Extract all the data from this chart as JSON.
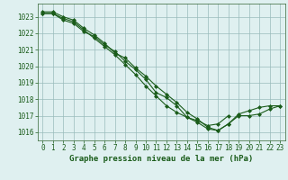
{
  "line1": {
    "x": [
      0,
      1,
      2,
      3,
      4,
      5,
      6,
      7,
      8,
      9,
      10,
      11,
      12,
      13,
      14,
      15,
      16,
      17,
      18,
      19,
      20,
      21,
      22,
      23
    ],
    "y": [
      1023.2,
      1023.2,
      1022.8,
      1022.6,
      1022.1,
      1021.8,
      1021.3,
      1020.9,
      1020.3,
      1019.8,
      1019.2,
      1018.4,
      1018.1,
      1017.6,
      1016.9,
      1016.6,
      1016.2,
      1016.1,
      1016.5,
      1017.0,
      1017.0,
      1017.1,
      1017.4,
      1017.6
    ]
  },
  "line2": {
    "x": [
      0,
      1,
      2,
      3,
      4,
      5,
      6,
      7,
      8,
      9,
      10,
      11,
      12,
      13,
      14,
      15,
      16,
      17,
      18,
      19,
      20,
      21,
      22,
      23
    ],
    "y": [
      1023.3,
      1023.3,
      1023.0,
      1022.8,
      1022.3,
      1021.9,
      1021.4,
      1020.8,
      1020.5,
      1019.9,
      1019.4,
      1018.8,
      1018.3,
      1017.8,
      1017.2,
      1016.8,
      1016.3,
      1016.1,
      1016.5,
      1017.1,
      1017.3,
      1017.5,
      1017.6,
      1017.6
    ]
  },
  "line3": {
    "x": [
      0,
      1,
      2,
      3,
      4,
      5,
      6,
      7,
      8,
      9,
      10,
      11,
      12,
      13,
      14,
      15,
      16,
      17,
      18
    ],
    "y": [
      1023.2,
      1023.2,
      1022.9,
      1022.7,
      1022.2,
      1021.7,
      1021.2,
      1020.7,
      1020.1,
      1019.5,
      1018.8,
      1018.2,
      1017.6,
      1017.2,
      1016.9,
      1016.7,
      1016.4,
      1016.5,
      1017.0
    ]
  },
  "bg_color": "#dff0f0",
  "grid_color": "#99bbbb",
  "line_color": "#1a5c1a",
  "marker": "D",
  "markersize": 2.0,
  "linewidth": 0.8,
  "ylim": [
    1015.5,
    1023.8
  ],
  "xlim": [
    -0.5,
    23.5
  ],
  "yticks": [
    1016,
    1017,
    1018,
    1019,
    1020,
    1021,
    1022,
    1023
  ],
  "xticks": [
    0,
    1,
    2,
    3,
    4,
    5,
    6,
    7,
    8,
    9,
    10,
    11,
    12,
    13,
    14,
    15,
    16,
    17,
    18,
    19,
    20,
    21,
    22,
    23
  ],
  "xlabel": "Graphe pression niveau de la mer (hPa)",
  "xlabel_fontsize": 6.5,
  "tick_fontsize": 5.5,
  "tick_color": "#1a5c1a",
  "label_color": "#1a5c1a",
  "spine_color": "#336633"
}
